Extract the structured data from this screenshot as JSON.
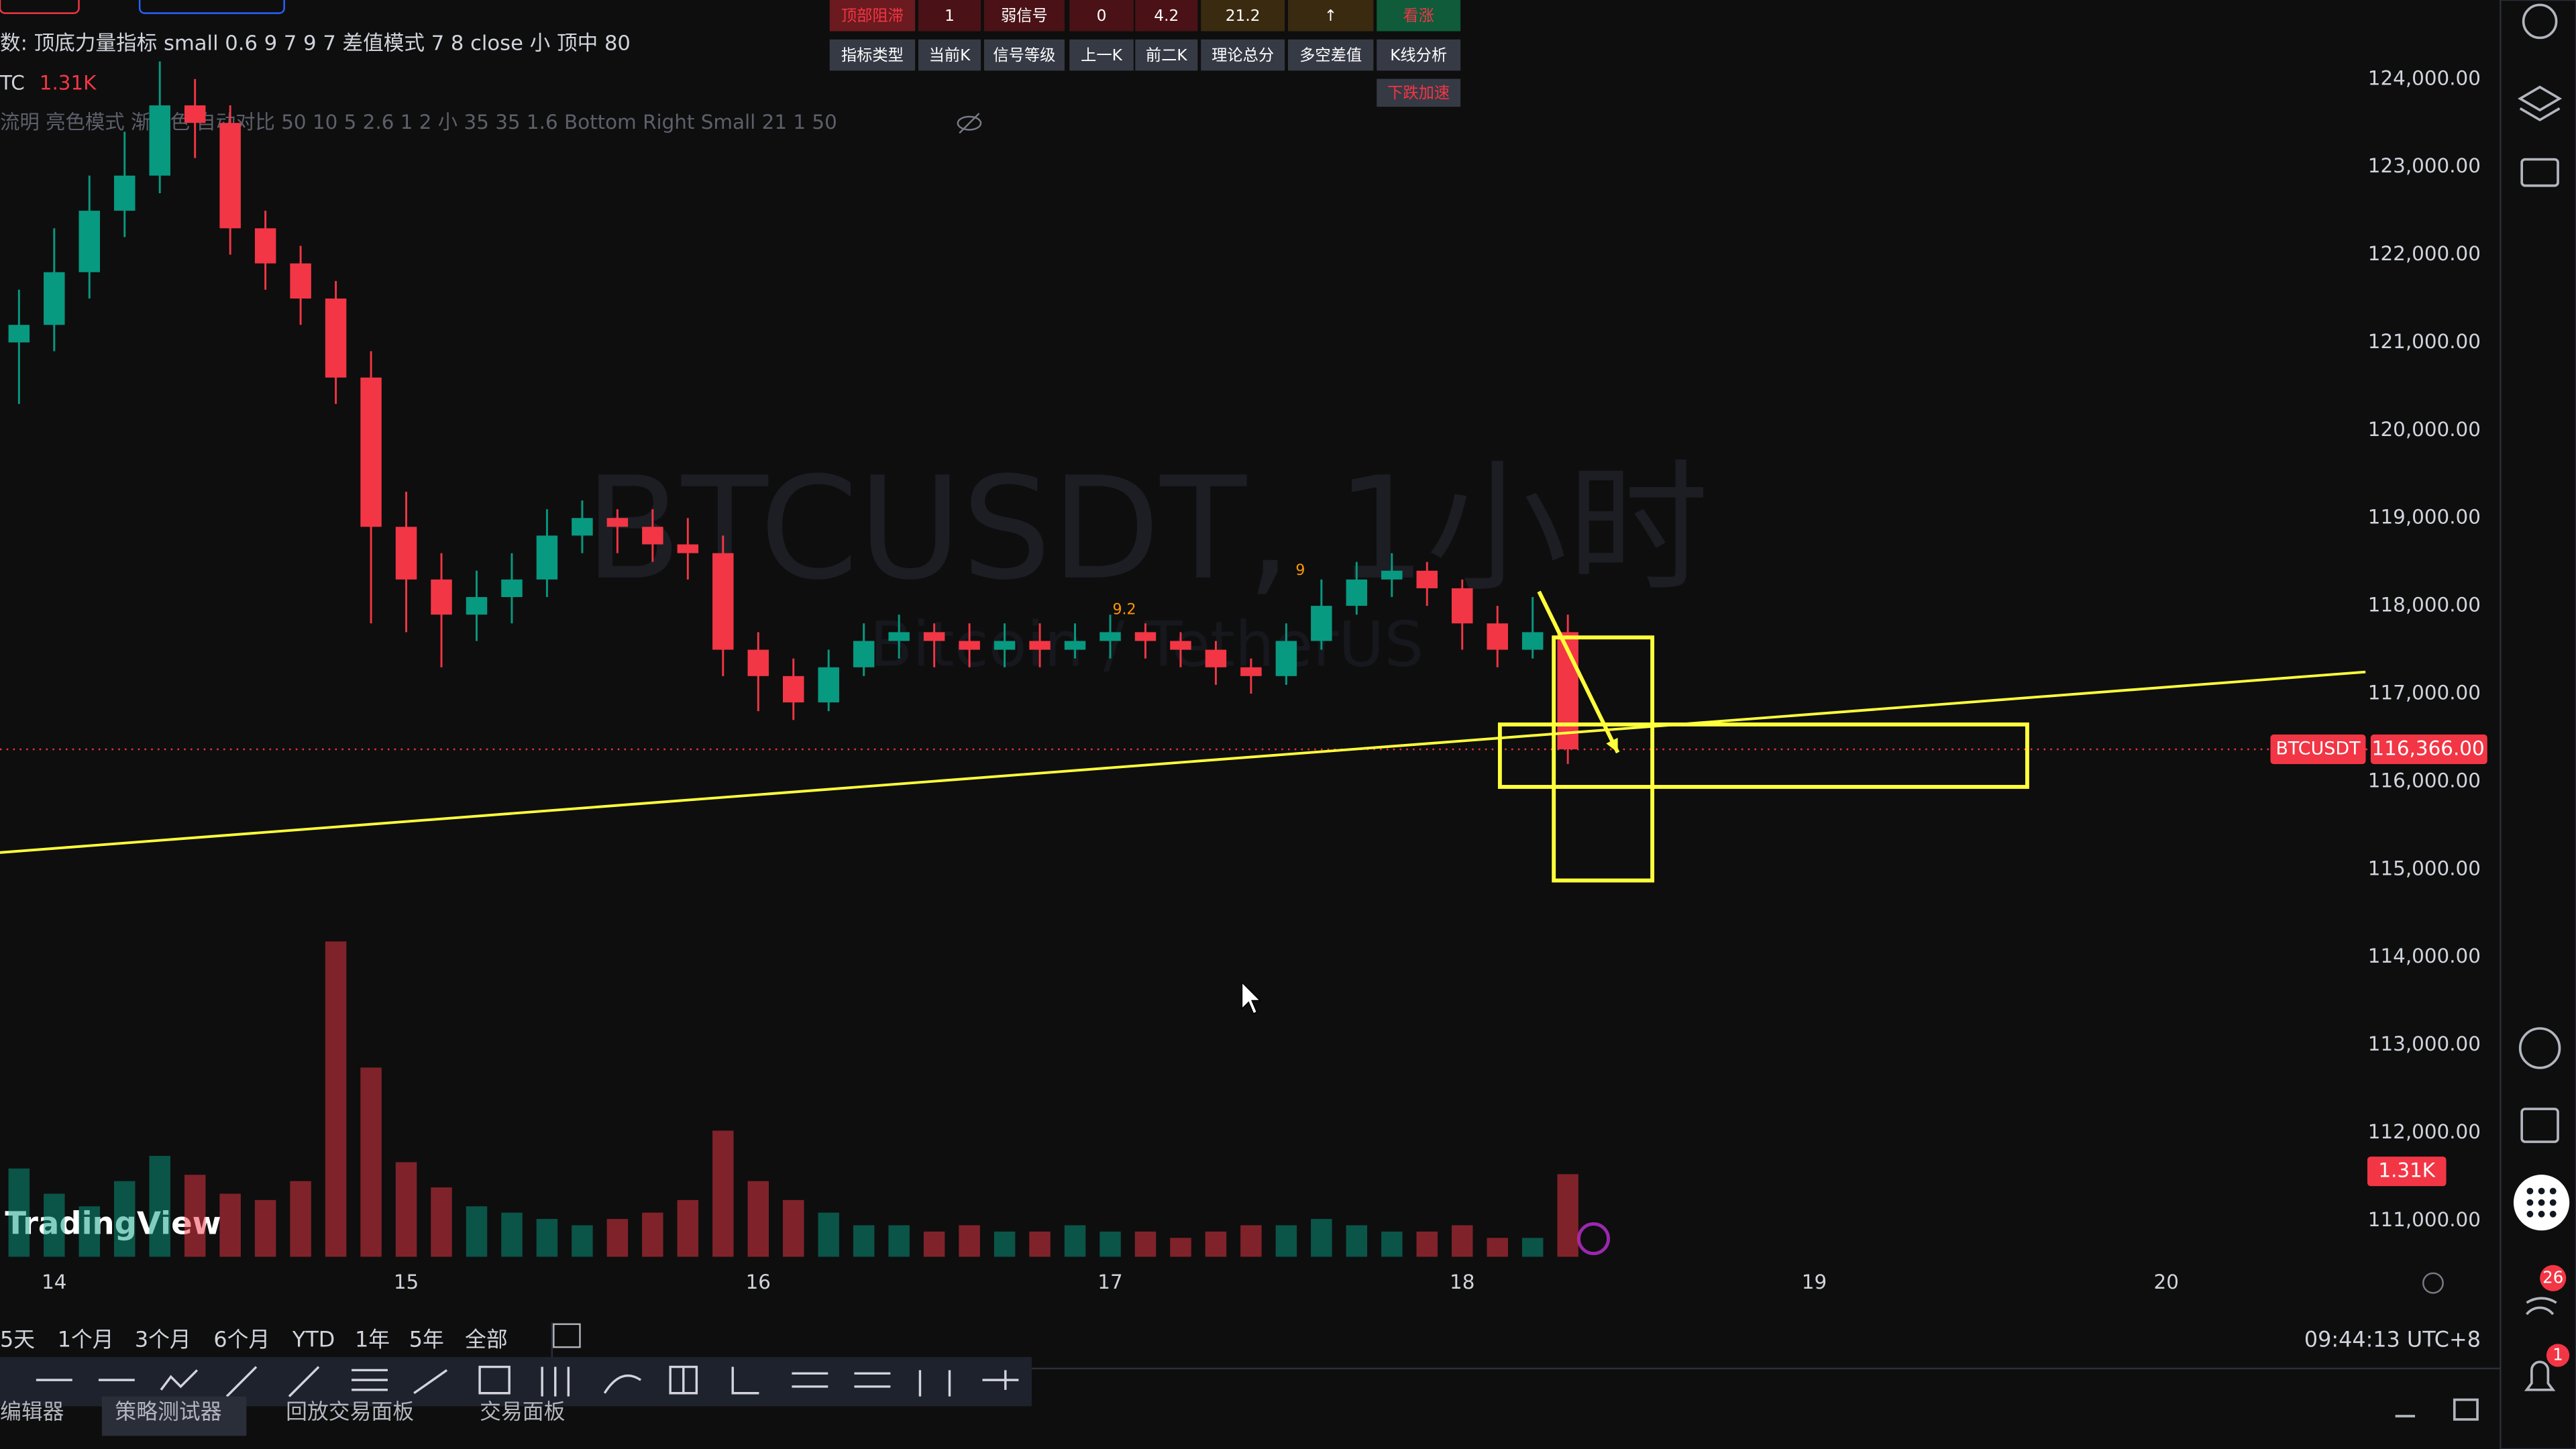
{
  "header": {
    "indicator_line": "数: 顶底力量指标 small 0.6 9 7 9 7 差值模式 7 8 close 小 顶中 80",
    "symbol_short": "TC",
    "volume_text": "1.31K",
    "settings_line": "流明 亮色模式 渐变色 自动对比 50 10 5 2.6 1 2 小 35 35 1.6 Bottom Right Small 21 1 50"
  },
  "signal_table": {
    "row1": [
      "顶部阻滞",
      "1",
      "弱信号",
      "0",
      "4.2",
      "21.2",
      "↑",
      "看涨"
    ],
    "row2": [
      "指标类型",
      "当前K",
      "信号等级",
      "上一K",
      "前二K",
      "理论总分",
      "多空差值",
      "K线分析"
    ],
    "row3": [
      "下跌加速"
    ]
  },
  "chart_data": {
    "type": "candlestick",
    "watermark": "BTCUSDT, 1小时",
    "watermark_sub": "Bitcoin / TetherUS",
    "x": [
      13.9,
      14.0,
      14.1,
      14.2,
      14.3,
      14.4,
      14.5,
      14.6,
      14.7,
      14.8,
      14.9,
      15.0,
      15.1,
      15.2,
      15.3,
      15.4,
      15.5,
      15.6,
      15.7,
      15.8,
      15.9,
      16.0,
      16.1,
      16.2,
      16.3,
      16.4,
      16.5,
      16.6,
      16.7,
      16.8,
      16.9,
      17.0,
      17.1,
      17.2,
      17.3,
      17.4,
      17.5,
      17.6,
      17.7,
      17.8,
      17.9,
      18.0,
      18.1,
      18.2,
      18.3
    ],
    "open": [
      121000,
      121200,
      121800,
      122500,
      122900,
      123700,
      123500,
      122300,
      121900,
      121500,
      120600,
      118900,
      118300,
      117900,
      118100,
      118300,
      118800,
      119000,
      118900,
      118700,
      118600,
      117500,
      117200,
      116900,
      117300,
      117600,
      117700,
      117600,
      117500,
      117600,
      117500,
      117600,
      117700,
      117600,
      117500,
      117300,
      117200,
      117600,
      118000,
      118300,
      118400,
      118200,
      117800,
      117500,
      117700
    ],
    "high": [
      121600,
      122300,
      122900,
      123400,
      124200,
      124000,
      123700,
      122500,
      122100,
      121700,
      120900,
      119300,
      118600,
      118400,
      118600,
      119100,
      119200,
      119100,
      119100,
      119000,
      118800,
      117700,
      117400,
      117500,
      117800,
      117900,
      117800,
      117800,
      117800,
      117800,
      117800,
      117900,
      117800,
      117700,
      117600,
      117400,
      117800,
      118300,
      118500,
      118600,
      118500,
      118300,
      118000,
      118100,
      117900
    ],
    "low": [
      120300,
      120900,
      121500,
      122200,
      122700,
      123100,
      122000,
      121600,
      121200,
      120300,
      117800,
      117700,
      117300,
      117600,
      117800,
      118100,
      118600,
      118600,
      118500,
      118300,
      117200,
      116800,
      116700,
      116800,
      117200,
      117400,
      117300,
      117300,
      117300,
      117300,
      117400,
      117400,
      117400,
      117300,
      117100,
      117000,
      117100,
      117500,
      117900,
      118100,
      118000,
      117500,
      117300,
      117400,
      116200
    ],
    "close": [
      121200,
      121800,
      122500,
      122900,
      123700,
      123500,
      122300,
      121900,
      121500,
      120600,
      118900,
      118300,
      117900,
      118100,
      118300,
      118800,
      119000,
      118900,
      118700,
      118600,
      117500,
      117200,
      116900,
      117300,
      117600,
      117700,
      117600,
      117500,
      117600,
      117500,
      117600,
      117700,
      117600,
      117500,
      117300,
      117200,
      117600,
      118000,
      118300,
      118400,
      118200,
      117800,
      117500,
      117700,
      116366
    ],
    "volume": [
      1.4,
      1.0,
      0.8,
      1.2,
      1.6,
      1.3,
      1.0,
      0.9,
      1.2,
      5.0,
      3.0,
      1.5,
      1.1,
      0.8,
      0.7,
      0.6,
      0.5,
      0.6,
      0.7,
      0.9,
      2.0,
      1.2,
      0.9,
      0.7,
      0.5,
      0.5,
      0.4,
      0.5,
      0.4,
      0.4,
      0.5,
      0.4,
      0.4,
      0.3,
      0.4,
      0.5,
      0.5,
      0.6,
      0.5,
      0.4,
      0.4,
      0.5,
      0.3,
      0.3,
      1.31
    ],
    "volume_lim": [
      0,
      5.6
    ],
    "up_color": "#089981",
    "down_color": "#f23645",
    "xlim": [
      13.846,
      20.94
    ],
    "xticks": [
      14,
      15,
      16,
      17,
      18,
      19,
      20
    ],
    "ylim": [
      110530,
      124900
    ],
    "yticks": [
      {
        "value": 111000,
        "label": "111,000.00"
      },
      {
        "value": 112000,
        "label": "112,000.00"
      },
      {
        "value": 113000,
        "label": "113,000.00"
      },
      {
        "value": 114000,
        "label": "114,000.00"
      },
      {
        "value": 115000,
        "label": "115,000.00"
      },
      {
        "value": 116000,
        "label": "116,000.00"
      },
      {
        "value": 117000,
        "label": "117,000.00"
      },
      {
        "value": 118000,
        "label": "118,000.00"
      },
      {
        "value": 119000,
        "label": "119,000.00"
      },
      {
        "value": 120000,
        "label": "120,000.00"
      },
      {
        "value": 121000,
        "label": "121,000.00"
      },
      {
        "value": 122000,
        "label": "122,000.00"
      },
      {
        "value": 123000,
        "label": "123,000.00"
      },
      {
        "value": 124000,
        "label": "124,000.00"
      }
    ],
    "grid": false,
    "symbol_tag": "BTCUSDT",
    "last_price_label": "116,366.00",
    "volume_label": "1.31K",
    "signal_labels": [
      {
        "x": 17.04,
        "y": 117950,
        "label": "9.2"
      },
      {
        "x": 17.54,
        "y": 118400,
        "label": "9"
      }
    ],
    "annotations": {
      "color": "#ffff3b",
      "trendline": {
        "x": [
          13.846,
          20.566
        ],
        "y": [
          115190,
          117247
        ]
      },
      "boxes": [
        {
          "x": [
            18.107,
            19.605
          ],
          "y": [
            116649,
            115938
          ]
        },
        {
          "x": [
            18.26,
            18.54
          ],
          "y": [
            117640,
            114872
          ]
        }
      ],
      "arrow": {
        "x": [
          18.218,
          18.442
        ],
        "y": [
          118163,
          116329
        ]
      }
    }
  },
  "bottom_bar": {
    "ranges": [
      "5天",
      "1个月",
      "3个月",
      "6个月",
      "YTD",
      "1年",
      "5年",
      "全部"
    ],
    "clock": "09:44:13 UTC+8",
    "tabs": [
      "编辑器",
      "策略测试器",
      "回放交易面板",
      "交易面板"
    ]
  },
  "brand": "TradingView",
  "badges": {
    "alerts": "26",
    "notifications": "1"
  }
}
